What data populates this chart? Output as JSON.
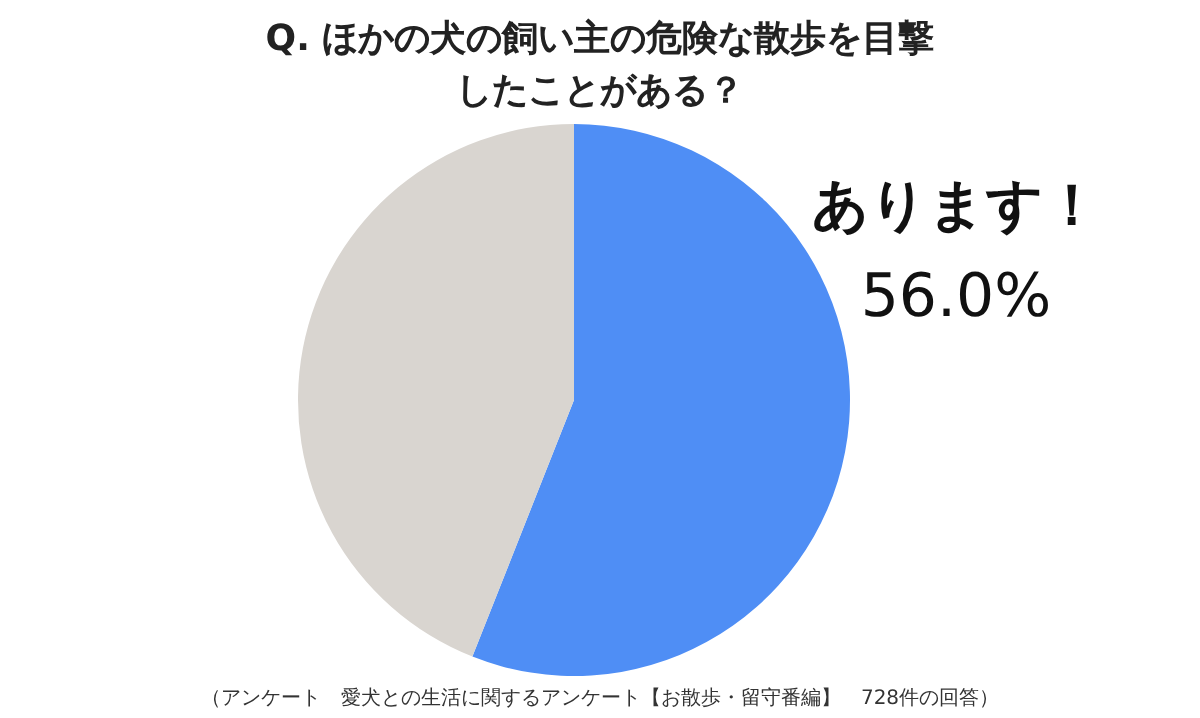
{
  "chart_data": {
    "type": "pie",
    "title": "Q.  ほかの犬の飼い主の危険な散歩を目撃したことがある？",
    "categories": [
      "あります！",
      null
    ],
    "values": [
      56.0,
      44.0
    ],
    "value_labels": [
      "56.0%",
      null
    ],
    "colors": [
      "#4f8ef5",
      "#d9d5d0"
    ],
    "annotations": [
      "（アンケート　愛犬との生活に関するアンケート【お散歩・留守番編】　728件の回答）"
    ]
  }
}
